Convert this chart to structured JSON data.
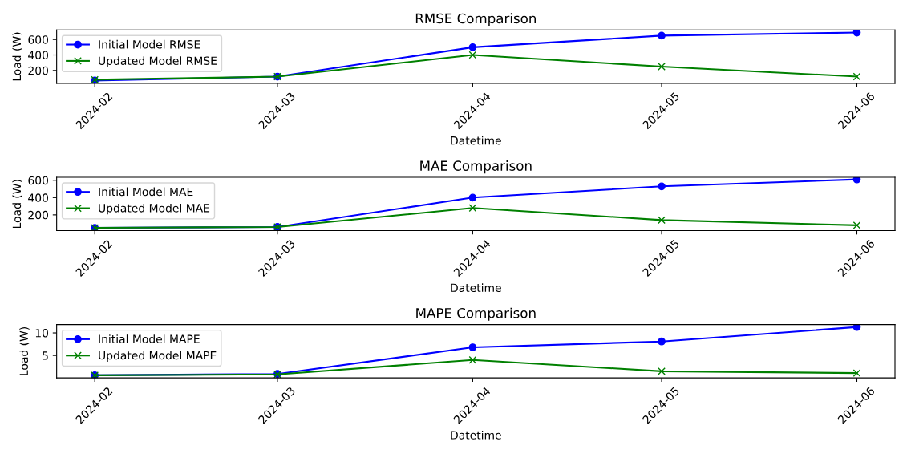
{
  "chart_data": [
    {
      "type": "line",
      "title": "RMSE Comparison",
      "xlabel": "Datetime",
      "ylabel": "Load (W)",
      "x": [
        "2024-02-01",
        "2024-03-01",
        "2024-04-01",
        "2024-05-01",
        "2024-06-01"
      ],
      "xlim": [
        "2024-01-25T22:48",
        "2024-06-07T01:12"
      ],
      "xticks": [
        {
          "value": "2024-02-01",
          "label": "2024-02"
        },
        {
          "value": "2024-03-01",
          "label": "2024-03"
        },
        {
          "value": "2024-04-01",
          "label": "2024-04"
        },
        {
          "value": "2024-05-01",
          "label": "2024-05"
        },
        {
          "value": "2024-06-01",
          "label": "2024-06"
        }
      ],
      "ylim": [
        34,
        723
      ],
      "yticks": [
        200,
        400,
        600
      ],
      "legend": "top left",
      "grid": false,
      "series": [
        {
          "name": "Initial Model RMSE",
          "color": "#0000ff",
          "marker": "circle",
          "values": [
            70,
            120,
            500,
            650,
            690
          ]
        },
        {
          "name": "Updated Model RMSE",
          "color": "#008000",
          "marker": "cross",
          "values": [
            80,
            120,
            400,
            250,
            120
          ]
        }
      ]
    },
    {
      "type": "line",
      "title": "MAE Comparison",
      "xlabel": "Datetime",
      "ylabel": "Load (W)",
      "x": [
        "2024-02-01",
        "2024-03-01",
        "2024-04-01",
        "2024-05-01",
        "2024-06-01"
      ],
      "xlim": [
        "2024-01-25T22:48",
        "2024-06-07T01:12"
      ],
      "xticks": [
        {
          "value": "2024-02-01",
          "label": "2024-02"
        },
        {
          "value": "2024-03-01",
          "label": "2024-03"
        },
        {
          "value": "2024-04-01",
          "label": "2024-04"
        },
        {
          "value": "2024-05-01",
          "label": "2024-05"
        },
        {
          "value": "2024-06-01",
          "label": "2024-06"
        }
      ],
      "ylim": [
        18,
        635
      ],
      "yticks": [
        200,
        400,
        600
      ],
      "legend": "top left",
      "grid": false,
      "series": [
        {
          "name": "Initial Model MAE",
          "color": "#0000ff",
          "marker": "circle",
          "values": [
            50,
            60,
            400,
            530,
            610
          ]
        },
        {
          "name": "Updated Model MAE",
          "color": "#008000",
          "marker": "cross",
          "values": [
            50,
            60,
            280,
            140,
            80
          ]
        }
      ]
    },
    {
      "type": "line",
      "title": "MAPE Comparison",
      "xlabel": "Datetime",
      "ylabel": "Load (W)",
      "x": [
        "2024-02-01",
        "2024-03-01",
        "2024-04-01",
        "2024-05-01",
        "2024-06-01"
      ],
      "xlim": [
        "2024-01-25T22:48",
        "2024-06-07T01:12"
      ],
      "xticks": [
        {
          "value": "2024-02-01",
          "label": "2024-02"
        },
        {
          "value": "2024-03-01",
          "label": "2024-03"
        },
        {
          "value": "2024-04-01",
          "label": "2024-04"
        },
        {
          "value": "2024-05-01",
          "label": "2024-05"
        },
        {
          "value": "2024-06-01",
          "label": "2024-06"
        }
      ],
      "ylim": [
        0.02,
        11.84
      ],
      "yticks": [
        5,
        10
      ],
      "legend": "top left",
      "grid": false,
      "series": [
        {
          "name": "Initial Model MAPE",
          "color": "#0000ff",
          "marker": "circle",
          "values": [
            0.6,
            0.9,
            6.8,
            8.1,
            11.3
          ]
        },
        {
          "name": "Updated Model MAPE",
          "color": "#008000",
          "marker": "cross",
          "values": [
            0.6,
            0.8,
            4.0,
            1.5,
            1.1
          ]
        }
      ]
    }
  ]
}
